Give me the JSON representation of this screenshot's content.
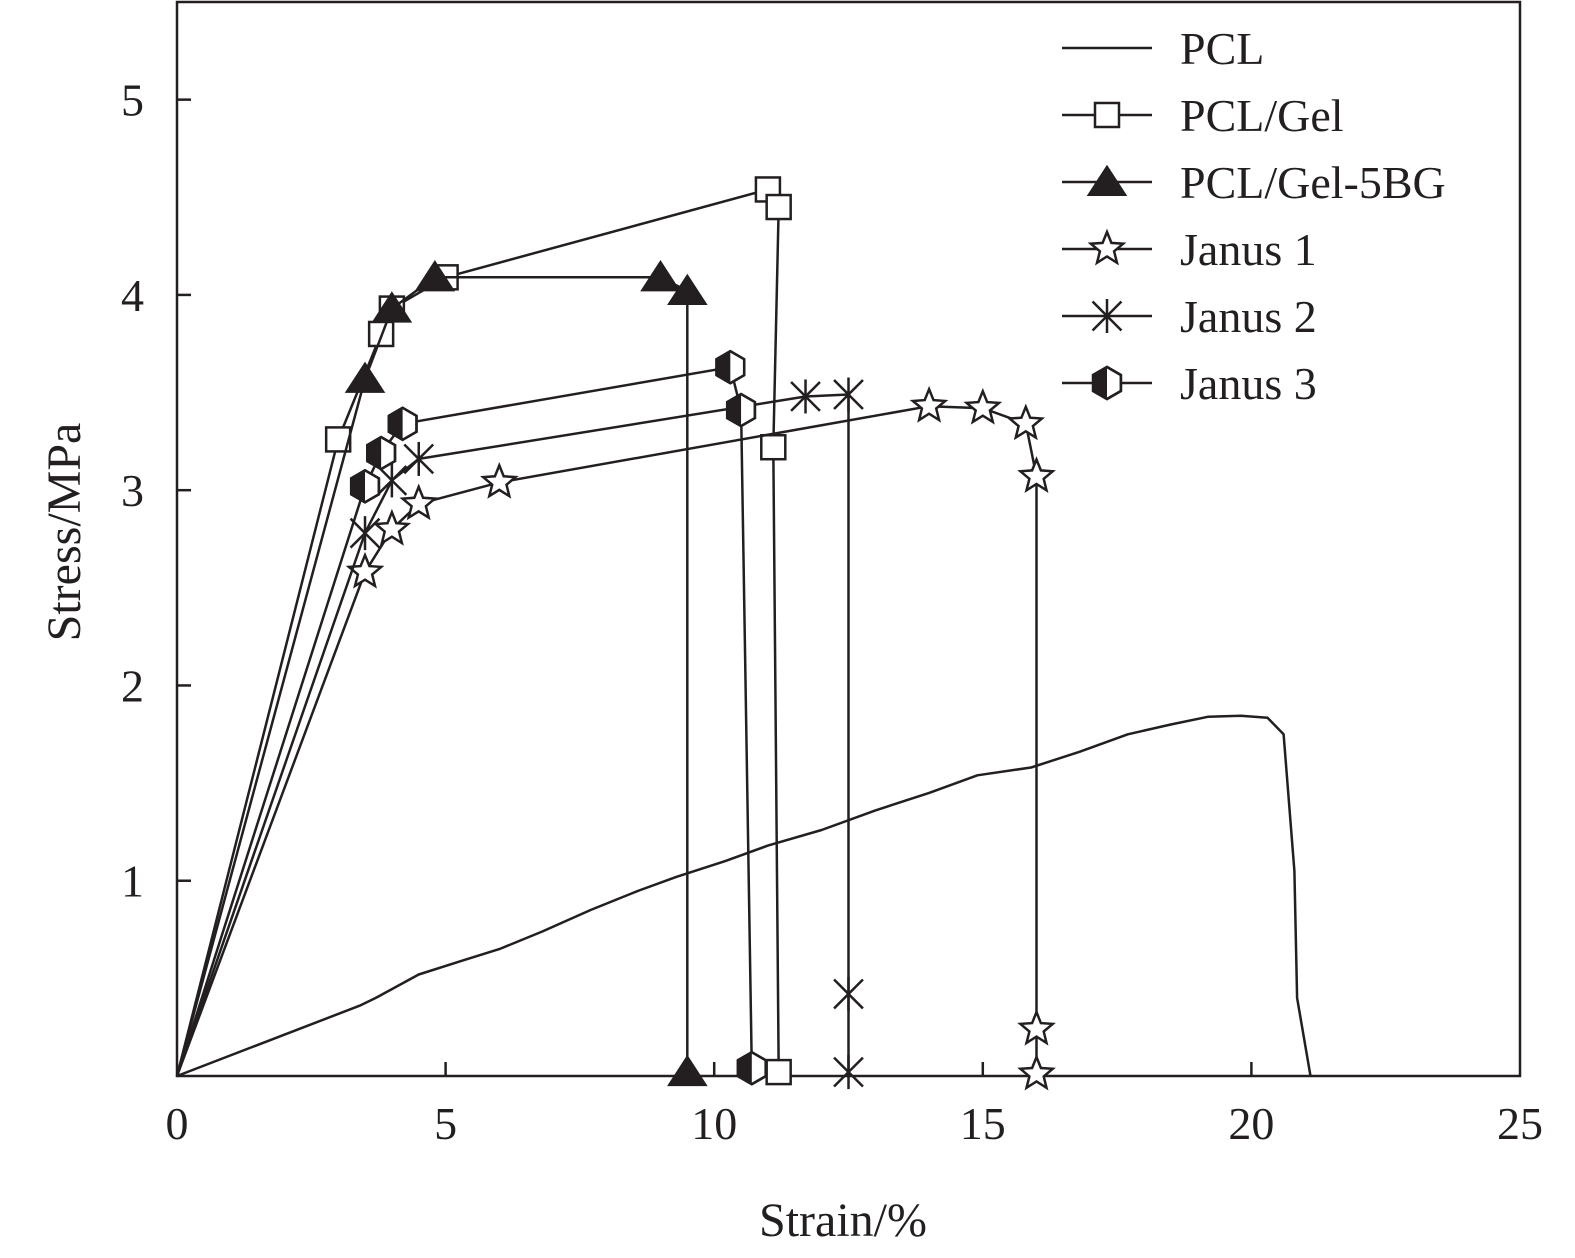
{
  "chart_data": {
    "type": "line",
    "xlabel": "Strain/%",
    "ylabel": "Stress/MPa",
    "xlim": [
      0,
      25
    ],
    "ylim": [
      0,
      5.5
    ],
    "xticks": [
      0,
      5,
      10,
      15,
      20,
      25
    ],
    "yticks": [
      1,
      2,
      3,
      4,
      5
    ],
    "xtick_labels": [
      "0",
      "5",
      "10",
      "15",
      "20",
      "25"
    ],
    "ytick_labels": [
      "1",
      "2",
      "3",
      "4",
      "5"
    ],
    "legend_position": "top-right",
    "series": [
      {
        "name": "PCL",
        "marker": "none",
        "points": [
          [
            0,
            0
          ],
          [
            3.4,
            0.36
          ],
          [
            3.7,
            0.4
          ],
          [
            4.5,
            0.52
          ],
          [
            5.3,
            0.59
          ],
          [
            6.0,
            0.65
          ],
          [
            6.8,
            0.74
          ],
          [
            7.7,
            0.85
          ],
          [
            8.6,
            0.95
          ],
          [
            9.3,
            1.02
          ],
          [
            10.2,
            1.1
          ],
          [
            11.0,
            1.18
          ],
          [
            12.0,
            1.26
          ],
          [
            13.0,
            1.36
          ],
          [
            14.0,
            1.45
          ],
          [
            14.9,
            1.54
          ],
          [
            15.9,
            1.58
          ],
          [
            16.8,
            1.66
          ],
          [
            17.7,
            1.75
          ],
          [
            18.5,
            1.8
          ],
          [
            19.2,
            1.84
          ],
          [
            19.8,
            1.845
          ],
          [
            20.3,
            1.835
          ],
          [
            20.6,
            1.75
          ],
          [
            20.8,
            1.05
          ],
          [
            20.85,
            0.4
          ],
          [
            21.1,
            0.0
          ]
        ]
      },
      {
        "name": "PCL/Gel",
        "marker": "open-square",
        "points": [
          [
            0,
            0
          ],
          [
            3.0,
            3.26
          ],
          [
            3.8,
            3.8
          ],
          [
            4.0,
            3.93
          ],
          [
            5.0,
            4.09
          ],
          [
            11.0,
            4.54
          ],
          [
            11.2,
            4.45
          ],
          [
            11.1,
            3.22
          ],
          [
            11.2,
            0.02
          ]
        ]
      },
      {
        "name": "PCL/Gel-5BG",
        "marker": "filled-triangle",
        "points": [
          [
            0,
            0
          ],
          [
            3.5,
            3.57
          ],
          [
            4.0,
            3.93
          ],
          [
            4.8,
            4.09
          ],
          [
            9.0,
            4.09
          ],
          [
            9.5,
            4.02
          ],
          [
            9.5,
            0.02
          ]
        ]
      },
      {
        "name": "Janus 1",
        "marker": "open-star",
        "points": [
          [
            0,
            0
          ],
          [
            3.5,
            2.58
          ],
          [
            4.0,
            2.8
          ],
          [
            4.5,
            2.93
          ],
          [
            6.0,
            3.04
          ],
          [
            14.0,
            3.43
          ],
          [
            15.0,
            3.42
          ],
          [
            15.8,
            3.34
          ],
          [
            16.0,
            3.07
          ],
          [
            16.0,
            0.24
          ],
          [
            16.0,
            0.01
          ]
        ]
      },
      {
        "name": "Janus 2",
        "marker": "asterisk",
        "points": [
          [
            0,
            0
          ],
          [
            3.5,
            2.78
          ],
          [
            4.0,
            3.05
          ],
          [
            4.5,
            3.16
          ],
          [
            11.7,
            3.48
          ],
          [
            12.5,
            3.49
          ],
          [
            12.5,
            0.42
          ],
          [
            12.5,
            0.02
          ]
        ]
      },
      {
        "name": "Janus 3",
        "marker": "half-filled-hexagon",
        "points": [
          [
            0,
            0
          ],
          [
            3.5,
            3.02
          ],
          [
            3.8,
            3.19
          ],
          [
            4.2,
            3.34
          ],
          [
            10.3,
            3.63
          ],
          [
            10.5,
            3.41
          ],
          [
            10.7,
            0.04
          ]
        ]
      }
    ]
  }
}
